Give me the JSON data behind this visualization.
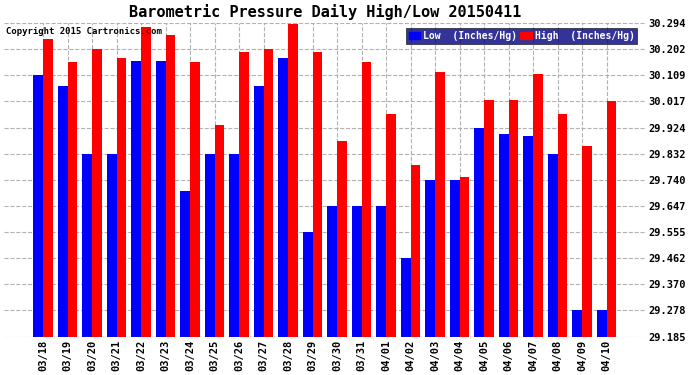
{
  "title": "Barometric Pressure Daily High/Low 20150411",
  "copyright": "Copyright 2015 Cartronics.com",
  "ytick_labels": [
    "30.294",
    "30.202",
    "30.109",
    "30.017",
    "29.924",
    "29.832",
    "29.740",
    "29.647",
    "29.555",
    "29.462",
    "29.370",
    "29.278",
    "29.185"
  ],
  "dates": [
    "03/18",
    "03/19",
    "03/20",
    "03/21",
    "03/22",
    "03/23",
    "03/24",
    "03/25",
    "03/26",
    "03/27",
    "03/28",
    "03/29",
    "03/30",
    "03/31",
    "04/01",
    "04/02",
    "04/03",
    "04/04",
    "04/05",
    "04/06",
    "04/07",
    "04/08",
    "04/09",
    "04/10"
  ],
  "high": [
    30.235,
    30.155,
    30.202,
    30.17,
    30.28,
    30.25,
    30.155,
    29.932,
    30.19,
    30.202,
    30.29,
    30.19,
    29.878,
    30.155,
    29.97,
    29.79,
    30.12,
    29.75,
    30.02,
    30.02,
    30.112,
    29.97,
    29.86,
    30.017
  ],
  "low": [
    30.109,
    30.07,
    29.832,
    29.832,
    30.16,
    30.16,
    29.7,
    29.832,
    29.832,
    30.07,
    30.17,
    29.555,
    29.647,
    29.647,
    29.647,
    29.462,
    29.74,
    29.74,
    29.924,
    29.9,
    29.893,
    29.832,
    29.278,
    29.278
  ],
  "ymin": 29.185,
  "ymax": 30.294,
  "bar_color_low": "#0000FF",
  "bar_color_high": "#FF0000",
  "bg_color": "#FFFFFF",
  "grid_color": "#AAAAAA"
}
